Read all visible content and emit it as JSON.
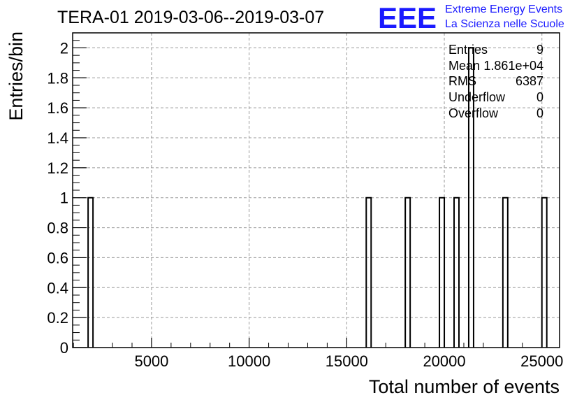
{
  "header": {
    "title": "TERA-01 2019-03-06--2019-03-07",
    "logo_text": "EEE",
    "logo_line1": "Extreme Energy Events",
    "logo_line2": "La Scienza nelle Scuole",
    "logo_color": "#1a1aff"
  },
  "stats": {
    "entries_label": "Entries",
    "entries_value": "9",
    "mean_label": "Mean",
    "mean_value": "1.861e+04",
    "rms_label": "RMS",
    "rms_value": "6387",
    "underflow_label": "Underflow",
    "underflow_value": "0",
    "overflow_label": "Overflow",
    "overflow_value": "0"
  },
  "chart_data": {
    "type": "bar",
    "title": "TERA-01 2019-03-06--2019-03-07",
    "xlabel": "Total number of events",
    "ylabel": "Entries/bin",
    "xlim": [
      958,
      25904
    ],
    "ylim": [
      0,
      2.1
    ],
    "bin_width": 250,
    "x_ticks": [
      5000,
      10000,
      15000,
      20000,
      25000
    ],
    "x_tick_labels": [
      "5000",
      "10000",
      "15000",
      "20000",
      "25000"
    ],
    "y_ticks": [
      0,
      0.2,
      0.4,
      0.6,
      0.8,
      1,
      1.2,
      1.4,
      1.6,
      1.8,
      2
    ],
    "y_tick_labels": [
      "0",
      "0.2",
      "0.4",
      "0.6",
      "0.8",
      "1",
      "1.2",
      "1.4",
      "1.6",
      "1.8",
      "2"
    ],
    "grid": true,
    "bins": [
      {
        "x_low": 1750,
        "count": 1
      },
      {
        "x_low": 16000,
        "count": 1
      },
      {
        "x_low": 18000,
        "count": 1
      },
      {
        "x_low": 19750,
        "count": 1
      },
      {
        "x_low": 20500,
        "count": 1
      },
      {
        "x_low": 21250,
        "count": 2
      },
      {
        "x_low": 23000,
        "count": 1
      },
      {
        "x_low": 25000,
        "count": 1
      }
    ]
  }
}
